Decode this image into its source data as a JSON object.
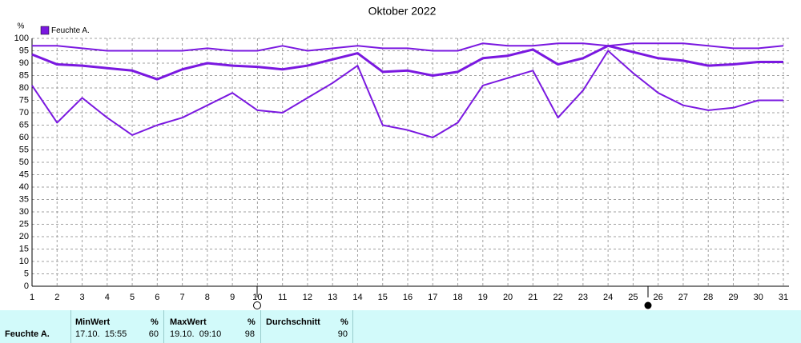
{
  "chart_data": {
    "type": "line",
    "title": "Oktober 2022",
    "y_label": "%",
    "color": "#7a18e0",
    "x": [
      1,
      2,
      3,
      4,
      5,
      6,
      7,
      8,
      9,
      10,
      11,
      12,
      13,
      14,
      15,
      16,
      17,
      18,
      19,
      20,
      21,
      22,
      23,
      24,
      25,
      26,
      27,
      28,
      29,
      30,
      31
    ],
    "series": [
      {
        "name": "Feuchte A.",
        "color": "#7a18e0",
        "values": [
          93.5,
          89.5,
          89,
          88,
          87,
          83.5,
          87.5,
          90,
          89,
          88.5,
          87.5,
          89,
          91.5,
          94,
          86.5,
          87,
          85,
          86.5,
          92,
          93,
          95.5,
          89.5,
          92,
          97,
          94.5,
          92,
          91,
          89,
          89.5,
          90.5,
          90.5
        ]
      },
      {
        "color": "#7a18e0",
        "values": [
          97,
          97,
          96,
          95,
          95,
          95,
          95,
          96,
          95,
          95,
          97,
          95,
          96,
          97,
          96,
          96,
          95,
          95,
          98,
          97,
          97,
          98,
          98,
          97,
          98,
          98,
          98,
          97,
          96,
          96,
          97
        ]
      },
      {
        "color": "#7a18e0",
        "values": [
          81,
          66,
          76,
          68,
          61,
          65,
          68,
          73,
          78,
          71,
          70,
          76,
          82,
          89,
          65,
          63,
          60,
          66,
          81,
          84,
          87,
          68,
          79,
          95,
          86,
          78,
          73,
          71,
          72,
          75,
          75
        ]
      }
    ],
    "xlim": [
      1,
      31
    ],
    "xticks": [
      1,
      2,
      3,
      4,
      5,
      6,
      7,
      8,
      9,
      10,
      11,
      12,
      13,
      14,
      15,
      16,
      17,
      18,
      19,
      20,
      21,
      22,
      23,
      24,
      25,
      26,
      27,
      28,
      29,
      30,
      31
    ],
    "ylim": [
      0,
      100
    ],
    "yticks": [
      0,
      5,
      10,
      15,
      20,
      25,
      30,
      35,
      40,
      45,
      50,
      55,
      60,
      65,
      70,
      75,
      80,
      85,
      90,
      95,
      100
    ],
    "grid": true
  },
  "table": {
    "row_label": "Feuchte A.",
    "columns": [
      {
        "header": "MinWert",
        "unit": "%",
        "time": "17.10.  15:55",
        "value": "60"
      },
      {
        "header": "MaxWert",
        "unit": "%",
        "time": "19.10.  09:10",
        "value": "98"
      },
      {
        "header": "Durchschnitt",
        "unit": "%",
        "value": "90"
      }
    ]
  }
}
